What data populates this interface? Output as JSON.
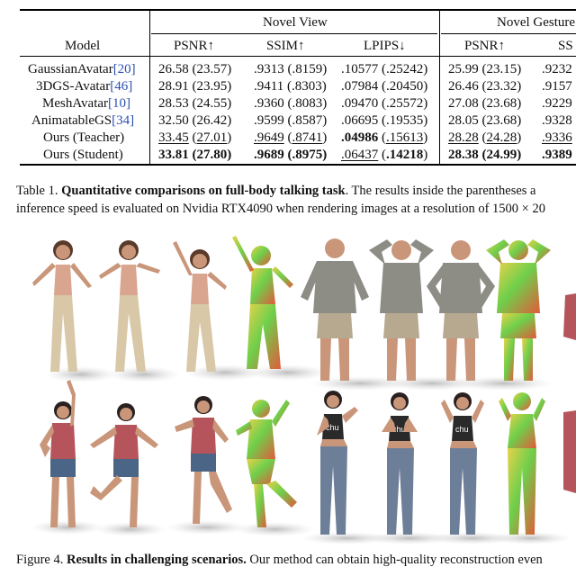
{
  "table": {
    "group_headers": [
      "Novel View",
      "Novel Gesture"
    ],
    "columns": [
      "Model",
      "PSNR↑",
      "SSIM↑",
      "LPIPS↓",
      "PSNR↑",
      "SS"
    ],
    "rows": [
      {
        "model": "GaussianAvatar",
        "ref": "[20]",
        "nv_psnr": "26.58 (23.57)",
        "nv_ssim": ".9313 (.8159)",
        "nv_lpips": ".10577 (.25242)",
        "ng_psnr": "25.99 (23.15)",
        "ng_ssim": ".9232"
      },
      {
        "model": "3DGS-Avatar",
        "ref": "[46]",
        "nv_psnr": "28.91 (23.95)",
        "nv_ssim": ".9411 (.8303)",
        "nv_lpips": ".07984 (.20450)",
        "ng_psnr": "26.46 (23.32)",
        "ng_ssim": ".9157"
      },
      {
        "model": "MeshAvatar",
        "ref": "[10]",
        "nv_psnr": "28.53 (24.55)",
        "nv_ssim": ".9360 (.8083)",
        "nv_lpips": ".09470 (.25572)",
        "ng_psnr": "27.08 (23.68)",
        "ng_ssim": ".9229"
      },
      {
        "model": "AnimatableGS",
        "ref": "[34]",
        "nv_psnr": "32.50 (26.42)",
        "nv_ssim": ".9599 (.8587)",
        "nv_lpips": ".06695 (.19535)",
        "ng_psnr": "28.05 (23.68)",
        "ng_ssim": ".9328"
      }
    ],
    "teacher": {
      "model": "Ours (Teacher)",
      "psnr_a": "33.45",
      "psnr_b": "27.01",
      "ssim_a": ".9649",
      "ssim_b": ".8741",
      "lpips_a": ".04986",
      "lpips_b": ".15613",
      "ng_psnr_a": "28.28",
      "ng_psnr_b": "24.28",
      "ng_ssim": ".9336"
    },
    "student": {
      "model": "Ours (Student)",
      "psnr_a": "33.81",
      "psnr_b": "27.80",
      "ssim_a": ".9689",
      "ssim_b": ".8975",
      "lpips_a": ".06437",
      "lpips_b": ".14218",
      "ng_psnr_a": "28.38",
      "ng_psnr_b": "24.99",
      "ng_ssim": ".9389"
    }
  },
  "table_caption": {
    "label": "Table 1.",
    "title": "Quantitative comparisons on full-body talking task",
    "rest": ". The results inside the parentheses a",
    "line2": "inference speed is evaluated on Nvidia RTX4090 when rendering images at a resolution of 1500 × 20"
  },
  "figure_caption": {
    "label": "Figure 4.",
    "title": "Results in challenging scenarios.",
    "rest": " Our method can obtain high-quality reconstruction even"
  },
  "shirt_text": "chu",
  "colors": {
    "skin": "#c9967a",
    "pink_top": "#d9a58f",
    "beige_pants": "#d8c8a8",
    "plaid": "#8d8d86",
    "khaki": "#b7a890",
    "red_shirt": "#b5545a",
    "denim": "#4a6585",
    "black_top": "#2a2a2a",
    "jeans": "#6d7f98",
    "normal_green": "#6fcf4b",
    "normal_yellow": "#e8d24a",
    "normal_red": "#e25a3a"
  }
}
